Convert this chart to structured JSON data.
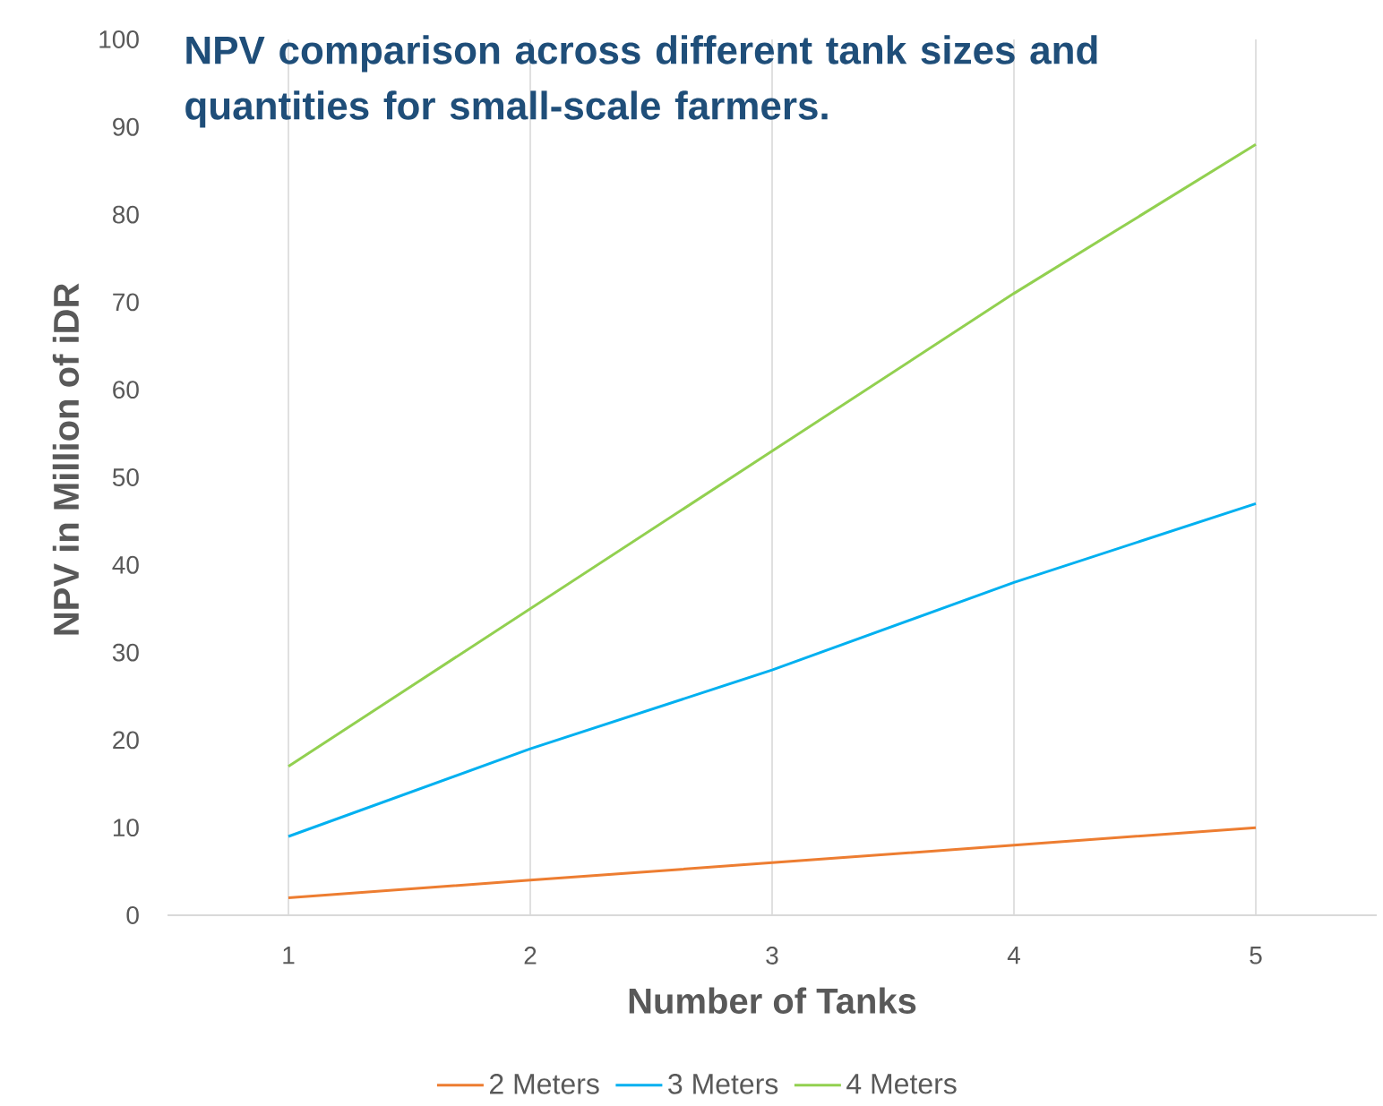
{
  "chart_data": {
    "type": "line",
    "title": "NPV comparison across different tank sizes and quantities for small-scale farmers.",
    "xlabel": "Number of Tanks",
    "ylabel": "NPV in Million of iDR",
    "categories": [
      "1",
      "2",
      "3",
      "4",
      "5"
    ],
    "series": [
      {
        "name": "2 Meters",
        "color": "#ed7d31",
        "values": [
          2,
          4,
          6,
          8,
          10
        ]
      },
      {
        "name": "3 Meters",
        "color": "#00b0f0",
        "values": [
          9,
          19,
          28,
          38,
          47
        ]
      },
      {
        "name": "4 Meters",
        "color": "#92d050",
        "values": [
          17,
          35,
          53,
          71,
          88
        ]
      }
    ],
    "ylim": [
      0,
      100
    ],
    "yticks": [
      0,
      10,
      20,
      30,
      40,
      50,
      60,
      70,
      80,
      90,
      100
    ],
    "grid": "x",
    "legend": "bottom",
    "marker": "none",
    "line_style": "solid"
  }
}
